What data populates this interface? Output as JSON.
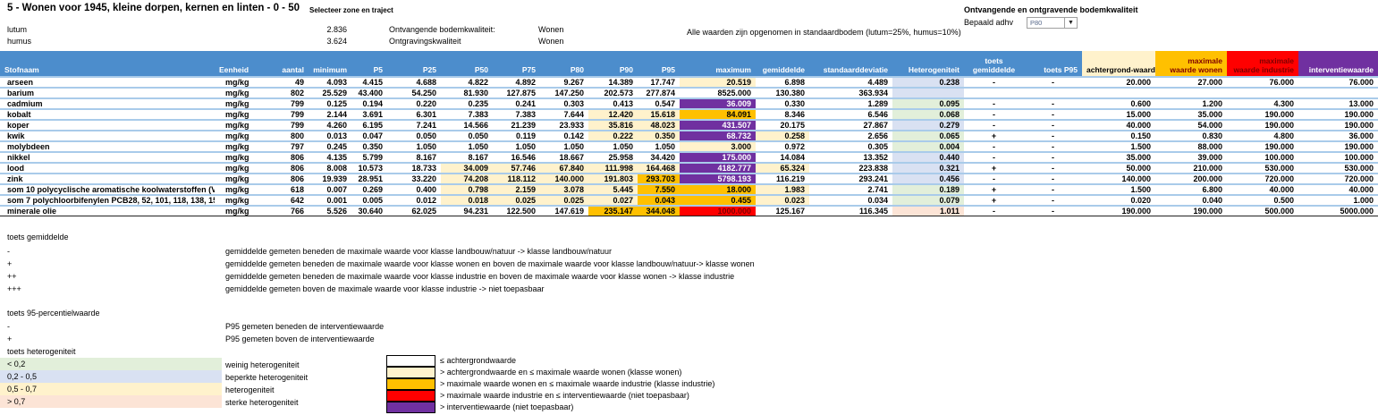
{
  "colors": {
    "headerblue": "#4C8DCC",
    "rowline": "#A9CBEA",
    "cream": "#FFF2CC",
    "gold": "#FFC000",
    "red": "#FF0000",
    "purple": "#7030A0",
    "green": "#E2EFDA",
    "lavender": "#D9E1F2",
    "peach": "#FCE4D6",
    "darkredtext": "#7F0000"
  },
  "header": {
    "title": "5 - Wonen voor 1945, kleine dorpen, kernen en linten - 0 - 50",
    "select_link": "Selecteer zone en traject",
    "lutum_label": "lutum",
    "lutum_value": "2.836",
    "humus_label": "humus",
    "humus_value": "3.624",
    "ontvangende_label": "Ontvangende bodemkwaliteit:",
    "ontvangende_value": "Wonen",
    "ontgravings_label": "Ontgravingskwaliteit",
    "ontgravings_value": "Wonen",
    "note": "Alle waarden zijn opgenomen in standaardbodem (lutum=25%, humus=10%)",
    "right_title": "Ontvangende en ontgravende bodemkwaliteit",
    "bepaald_label": "Bepaald adhv",
    "dropdown_value": "P80"
  },
  "table": {
    "columns": [
      "Stofnaam",
      "Eenheid",
      "aantal",
      "minimum",
      "P5",
      "P25",
      "P50",
      "P75",
      "P80",
      "P90",
      "P95",
      "maximum",
      "gemiddelde",
      "standaarddeviatie",
      "Heterogeniteit",
      "toets gemiddelde",
      "toets P95",
      "achtergrond-waarde",
      "maximale waarde wonen",
      "maximale waarde industrie",
      "interventiewaarde"
    ],
    "rows": [
      {
        "name": "arseen",
        "unit": "mg/kg",
        "cells": [
          {
            "v": "49"
          },
          {
            "v": "4.093"
          },
          {
            "v": "4.415"
          },
          {
            "v": "4.688"
          },
          {
            "v": "4.822"
          },
          {
            "v": "4.892"
          },
          {
            "v": "9.267"
          },
          {
            "v": "14.389"
          },
          {
            "v": "17.747"
          },
          {
            "v": "20.519",
            "c": "cream"
          },
          {
            "v": "6.898"
          },
          {
            "v": "4.489"
          },
          {
            "v": "0.238",
            "c": "lavender"
          },
          {
            "v": "-"
          },
          {
            "v": "-"
          },
          {
            "v": "20.000"
          },
          {
            "v": "27.000"
          },
          {
            "v": "76.000"
          },
          {
            "v": "76.000"
          }
        ]
      },
      {
        "name": "barium",
        "unit": "mg/kg",
        "cells": [
          {
            "v": "802"
          },
          {
            "v": "25.529"
          },
          {
            "v": "43.400"
          },
          {
            "v": "54.250"
          },
          {
            "v": "81.930"
          },
          {
            "v": "127.875"
          },
          {
            "v": "147.250"
          },
          {
            "v": "202.573"
          },
          {
            "v": "277.874"
          },
          {
            "v": "8525.000"
          },
          {
            "v": "130.380"
          },
          {
            "v": "363.934"
          },
          {
            "v": "",
            "c": "lavender"
          },
          {
            "v": ""
          },
          {
            "v": ""
          },
          {
            "v": ""
          },
          {
            "v": ""
          },
          {
            "v": ""
          },
          {
            "v": ""
          }
        ]
      },
      {
        "name": "cadmium",
        "unit": "mg/kg",
        "cells": [
          {
            "v": "799"
          },
          {
            "v": "0.125"
          },
          {
            "v": "0.194"
          },
          {
            "v": "0.220"
          },
          {
            "v": "0.235"
          },
          {
            "v": "0.241"
          },
          {
            "v": "0.303"
          },
          {
            "v": "0.413"
          },
          {
            "v": "0.547"
          },
          {
            "v": "36.009",
            "c": "purple"
          },
          {
            "v": "0.330"
          },
          {
            "v": "1.289"
          },
          {
            "v": "0.095",
            "c": "green"
          },
          {
            "v": "-"
          },
          {
            "v": "-"
          },
          {
            "v": "0.600"
          },
          {
            "v": "1.200"
          },
          {
            "v": "4.300"
          },
          {
            "v": "13.000"
          }
        ]
      },
      {
        "name": "kobalt",
        "unit": "mg/kg",
        "cells": [
          {
            "v": "799"
          },
          {
            "v": "2.144"
          },
          {
            "v": "3.691"
          },
          {
            "v": "6.301"
          },
          {
            "v": "7.383"
          },
          {
            "v": "7.383"
          },
          {
            "v": "7.644"
          },
          {
            "v": "12.420",
            "c": "cream"
          },
          {
            "v": "15.618",
            "c": "cream"
          },
          {
            "v": "84.091",
            "c": "gold"
          },
          {
            "v": "8.346"
          },
          {
            "v": "6.546"
          },
          {
            "v": "0.068",
            "c": "green"
          },
          {
            "v": "-"
          },
          {
            "v": "-"
          },
          {
            "v": "15.000"
          },
          {
            "v": "35.000"
          },
          {
            "v": "190.000"
          },
          {
            "v": "190.000"
          }
        ]
      },
      {
        "name": "koper",
        "unit": "mg/kg",
        "cells": [
          {
            "v": "799"
          },
          {
            "v": "4.260"
          },
          {
            "v": "6.195"
          },
          {
            "v": "7.241"
          },
          {
            "v": "14.566"
          },
          {
            "v": "21.239"
          },
          {
            "v": "23.933"
          },
          {
            "v": "35.816",
            "c": "cream"
          },
          {
            "v": "48.023",
            "c": "cream"
          },
          {
            "v": "431.507",
            "c": "purple"
          },
          {
            "v": "20.175"
          },
          {
            "v": "27.867"
          },
          {
            "v": "0.279",
            "c": "lavender"
          },
          {
            "v": "-"
          },
          {
            "v": "-"
          },
          {
            "v": "40.000"
          },
          {
            "v": "54.000"
          },
          {
            "v": "190.000"
          },
          {
            "v": "190.000"
          }
        ]
      },
      {
        "name": "kwik",
        "unit": "mg/kg",
        "cells": [
          {
            "v": "800"
          },
          {
            "v": "0.013"
          },
          {
            "v": "0.047"
          },
          {
            "v": "0.050"
          },
          {
            "v": "0.050"
          },
          {
            "v": "0.119"
          },
          {
            "v": "0.142"
          },
          {
            "v": "0.222",
            "c": "cream"
          },
          {
            "v": "0.350",
            "c": "cream"
          },
          {
            "v": "68.732",
            "c": "purple"
          },
          {
            "v": "0.258",
            "c": "cream"
          },
          {
            "v": "2.656"
          },
          {
            "v": "0.065",
            "c": "green"
          },
          {
            "v": "+"
          },
          {
            "v": "-"
          },
          {
            "v": "0.150"
          },
          {
            "v": "0.830"
          },
          {
            "v": "4.800"
          },
          {
            "v": "36.000"
          }
        ]
      },
      {
        "name": "molybdeen",
        "unit": "mg/kg",
        "cells": [
          {
            "v": "797"
          },
          {
            "v": "0.245"
          },
          {
            "v": "0.350"
          },
          {
            "v": "1.050"
          },
          {
            "v": "1.050"
          },
          {
            "v": "1.050"
          },
          {
            "v": "1.050"
          },
          {
            "v": "1.050"
          },
          {
            "v": "1.050"
          },
          {
            "v": "3.000",
            "c": "cream"
          },
          {
            "v": "0.972"
          },
          {
            "v": "0.305"
          },
          {
            "v": "0.004",
            "c": "green"
          },
          {
            "v": "-"
          },
          {
            "v": "-"
          },
          {
            "v": "1.500"
          },
          {
            "v": "88.000"
          },
          {
            "v": "190.000"
          },
          {
            "v": "190.000"
          }
        ]
      },
      {
        "name": "nikkel",
        "unit": "mg/kg",
        "cells": [
          {
            "v": "806"
          },
          {
            "v": "4.135"
          },
          {
            "v": "5.799"
          },
          {
            "v": "8.167"
          },
          {
            "v": "8.167"
          },
          {
            "v": "16.546"
          },
          {
            "v": "18.667"
          },
          {
            "v": "25.958"
          },
          {
            "v": "34.420"
          },
          {
            "v": "175.000",
            "c": "purple"
          },
          {
            "v": "14.084"
          },
          {
            "v": "13.352"
          },
          {
            "v": "0.440",
            "c": "lavender"
          },
          {
            "v": "-"
          },
          {
            "v": "-"
          },
          {
            "v": "35.000"
          },
          {
            "v": "39.000"
          },
          {
            "v": "100.000"
          },
          {
            "v": "100.000"
          }
        ]
      },
      {
        "name": "lood",
        "unit": "mg/kg",
        "cells": [
          {
            "v": "806"
          },
          {
            "v": "8.008"
          },
          {
            "v": "10.573"
          },
          {
            "v": "18.733"
          },
          {
            "v": "34.009",
            "c": "cream"
          },
          {
            "v": "57.746",
            "c": "cream"
          },
          {
            "v": "67.840",
            "c": "cream"
          },
          {
            "v": "111.998",
            "c": "cream"
          },
          {
            "v": "164.468",
            "c": "cream"
          },
          {
            "v": "4182.777",
            "c": "purple"
          },
          {
            "v": "65.324",
            "c": "cream"
          },
          {
            "v": "223.838"
          },
          {
            "v": "0.321",
            "c": "lavender"
          },
          {
            "v": "+"
          },
          {
            "v": "-"
          },
          {
            "v": "50.000"
          },
          {
            "v": "210.000"
          },
          {
            "v": "530.000"
          },
          {
            "v": "530.000"
          }
        ]
      },
      {
        "name": "zink",
        "unit": "mg/kg",
        "cells": [
          {
            "v": "806"
          },
          {
            "v": "19.939"
          },
          {
            "v": "28.951"
          },
          {
            "v": "33.220"
          },
          {
            "v": "74.208",
            "c": "cream"
          },
          {
            "v": "118.112",
            "c": "cream"
          },
          {
            "v": "140.000",
            "c": "cream"
          },
          {
            "v": "191.803",
            "c": "cream"
          },
          {
            "v": "293.703",
            "c": "gold"
          },
          {
            "v": "5798.193",
            "c": "purple"
          },
          {
            "v": "116.219"
          },
          {
            "v": "293.241"
          },
          {
            "v": "0.456",
            "c": "lavender"
          },
          {
            "v": "-"
          },
          {
            "v": "-"
          },
          {
            "v": "140.000"
          },
          {
            "v": "200.000"
          },
          {
            "v": "720.000"
          },
          {
            "v": "720.000"
          }
        ]
      },
      {
        "name": "som 10 polycyclische aromatische koolwaterstoffen (VROM)",
        "unit": "mg/kg",
        "cells": [
          {
            "v": "618"
          },
          {
            "v": "0.007"
          },
          {
            "v": "0.269"
          },
          {
            "v": "0.400"
          },
          {
            "v": "0.798",
            "c": "cream"
          },
          {
            "v": "2.159",
            "c": "cream"
          },
          {
            "v": "3.078",
            "c": "cream"
          },
          {
            "v": "5.445",
            "c": "cream"
          },
          {
            "v": "7.550",
            "c": "gold"
          },
          {
            "v": "18.000",
            "c": "gold"
          },
          {
            "v": "1.983",
            "c": "cream"
          },
          {
            "v": "2.741"
          },
          {
            "v": "0.189",
            "c": "green"
          },
          {
            "v": "+"
          },
          {
            "v": "-"
          },
          {
            "v": "1.500"
          },
          {
            "v": "6.800"
          },
          {
            "v": "40.000"
          },
          {
            "v": "40.000"
          }
        ]
      },
      {
        "name": "som 7 polychloorbifenylen PCB28, 52, 101, 118, 138, 153, 180",
        "unit": "mg/kg",
        "cells": [
          {
            "v": "642"
          },
          {
            "v": "0.001"
          },
          {
            "v": "0.005"
          },
          {
            "v": "0.012"
          },
          {
            "v": "0.018",
            "c": "cream"
          },
          {
            "v": "0.025",
            "c": "cream"
          },
          {
            "v": "0.025",
            "c": "cream"
          },
          {
            "v": "0.027",
            "c": "cream"
          },
          {
            "v": "0.043",
            "c": "gold"
          },
          {
            "v": "0.455",
            "c": "gold"
          },
          {
            "v": "0.023",
            "c": "cream"
          },
          {
            "v": "0.034"
          },
          {
            "v": "0.079",
            "c": "green"
          },
          {
            "v": "+"
          },
          {
            "v": "-"
          },
          {
            "v": "0.020"
          },
          {
            "v": "0.040"
          },
          {
            "v": "0.500"
          },
          {
            "v": "1.000"
          }
        ]
      },
      {
        "name": "minerale olie",
        "unit": "mg/kg",
        "cells": [
          {
            "v": "766"
          },
          {
            "v": "5.526"
          },
          {
            "v": "30.640"
          },
          {
            "v": "62.025"
          },
          {
            "v": "94.231"
          },
          {
            "v": "122.500"
          },
          {
            "v": "147.619"
          },
          {
            "v": "235.147",
            "c": "gold"
          },
          {
            "v": "344.048",
            "c": "gold"
          },
          {
            "v": "1000.000",
            "c": "red"
          },
          {
            "v": "125.167"
          },
          {
            "v": "116.345"
          },
          {
            "v": "1.011",
            "c": "peach"
          },
          {
            "v": "-"
          },
          {
            "v": "-"
          },
          {
            "v": "190.000"
          },
          {
            "v": "190.000"
          },
          {
            "v": "500.000"
          },
          {
            "v": "5000.000"
          }
        ]
      }
    ]
  },
  "legend_gemiddelde": {
    "title": "toets gemiddelde",
    "items": [
      {
        "symbol": "-",
        "text": "gemiddelde gemeten beneden de maximale waarde voor klasse landbouw/natuur -> klasse landbouw/natuur"
      },
      {
        "symbol": "+",
        "text": "gemiddelde gemeten beneden de maximale waarde voor klasse wonen en boven de maximale waarde voor klasse landbouw/natuur-> klasse wonen"
      },
      {
        "symbol": "++",
        "text": "gemiddelde gemeten beneden de maximale waarde voor klasse industrie en boven de maximale waarde voor klasse wonen -> klasse industrie"
      },
      {
        "symbol": "+++",
        "text": "gemiddelde gemeten boven de maximale waarde voor klasse industrie -> niet toepasbaar"
      }
    ]
  },
  "legend_p95": {
    "title": "toets 95-percentielwaarde",
    "items": [
      {
        "symbol": "-",
        "text": "P95 gemeten beneden de interventiewaarde"
      },
      {
        "symbol": "+",
        "text": "P95 gemeten boven de interventiewaarde"
      }
    ]
  },
  "legend_heterogeniteit": {
    "title": "toets heterogeniteit",
    "items": [
      {
        "range": "< 0,2",
        "color": "green",
        "text": "weinig heterogeniteit"
      },
      {
        "range": "0,2 - 0,5",
        "color": "lavender",
        "text": "beperkte heterogeniteit"
      },
      {
        "range": "0,5 - 0,7",
        "color": "cream",
        "text": "heterogeniteit"
      },
      {
        "range": "> 0,7",
        "color": "peach",
        "text": "sterke heterogeniteit"
      }
    ]
  },
  "color_key": {
    "items": [
      {
        "color": "white",
        "text": "≤ achtergrondwaarde"
      },
      {
        "color": "cream",
        "text": "> achtergrondwaarde en ≤ maximale waarde wonen (klasse wonen)"
      },
      {
        "color": "gold",
        "text": "> maximale waarde wonen en ≤ maximale waarde industrie (klasse industrie)"
      },
      {
        "color": "red",
        "text": "> maximale waarde industrie en ≤ interventiewaarde (niet toepasbaar)"
      },
      {
        "color": "purple",
        "text": "> interventiewaarde (niet toepasbaar)"
      }
    ]
  }
}
